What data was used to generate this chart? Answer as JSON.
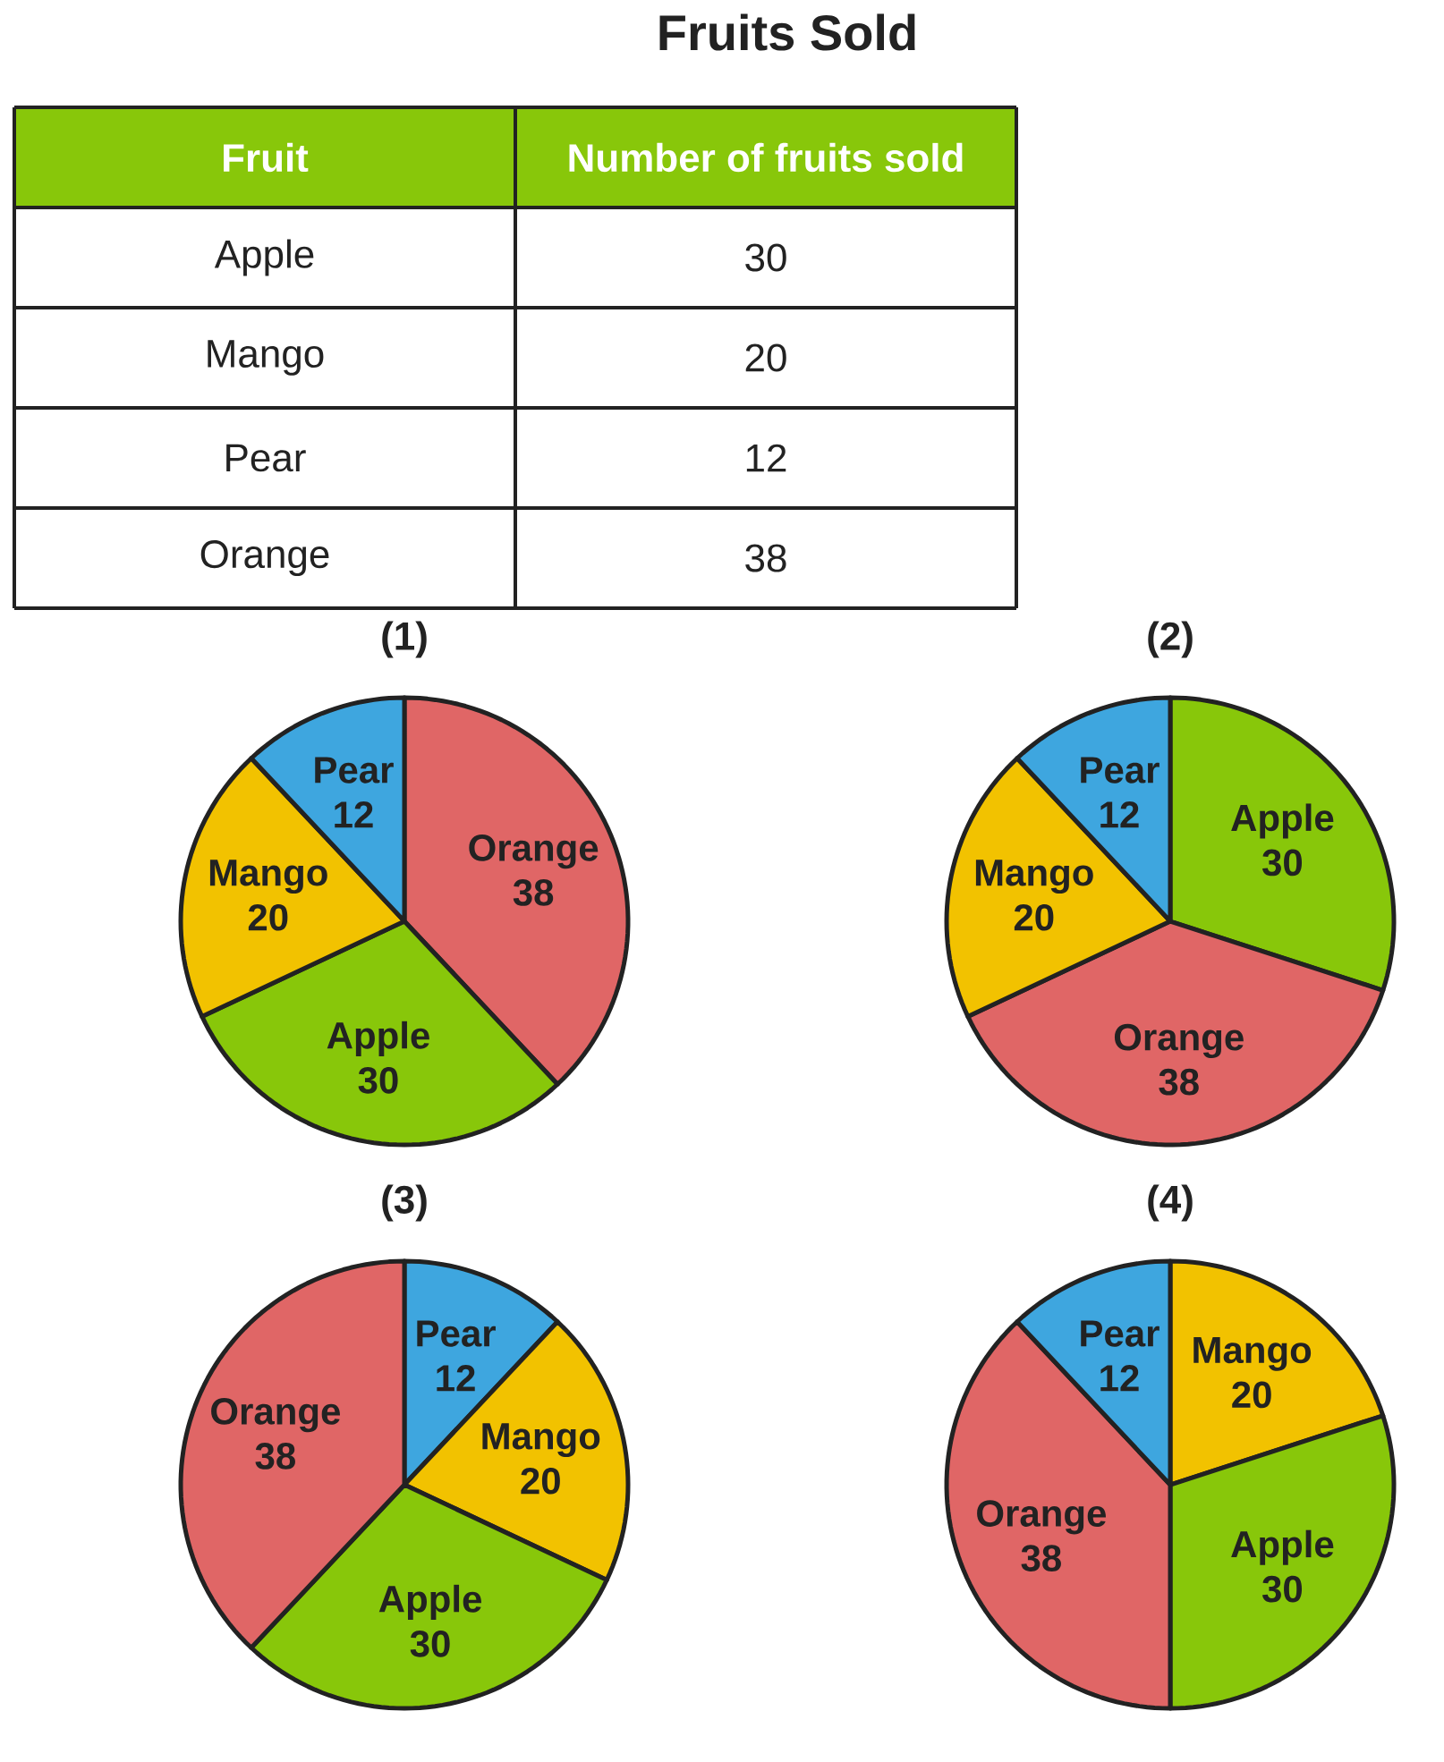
{
  "chart_data": [
    {
      "type": "other",
      "title": "Fruits Sold",
      "xlabel": "Fruit",
      "ylabel": "Number of fruits sold",
      "color": "#88c70a",
      "categories": [
        "Apple",
        "Mango",
        "Pear",
        "Orange"
      ],
      "values": [
        30,
        20,
        12,
        38
      ],
      "data_labels": true
    },
    {
      "type": "pie",
      "title": "(1)",
      "categories": [
        "Orange",
        "Apple",
        "Mango",
        "Pear"
      ],
      "values": [
        38,
        30,
        20,
        12
      ],
      "colors": [
        "#e06666",
        "#88c70a",
        "#f2c200",
        "#3ea6df"
      ],
      "data_labels": true
    },
    {
      "type": "pie",
      "title": "(2)",
      "categories": [
        "Apple",
        "Orange",
        "Mango",
        "Pear"
      ],
      "values": [
        30,
        38,
        20,
        12
      ],
      "colors": [
        "#88c70a",
        "#e06666",
        "#f2c200",
        "#3ea6df"
      ],
      "data_labels": true
    },
    {
      "type": "pie",
      "title": "(3)",
      "categories": [
        "Pear",
        "Mango",
        "Apple",
        "Orange"
      ],
      "values": [
        12,
        20,
        30,
        38
      ],
      "colors": [
        "#3ea6df",
        "#f2c200",
        "#88c70a",
        "#e06666"
      ],
      "data_labels": true
    },
    {
      "type": "pie",
      "title": "(4)",
      "categories": [
        "Mango",
        "Apple",
        "Orange",
        "Pear"
      ],
      "values": [
        20,
        30,
        38,
        12
      ],
      "colors": [
        "#f2c200",
        "#88c70a",
        "#e06666",
        "#3ea6df"
      ],
      "data_labels": true
    }
  ]
}
